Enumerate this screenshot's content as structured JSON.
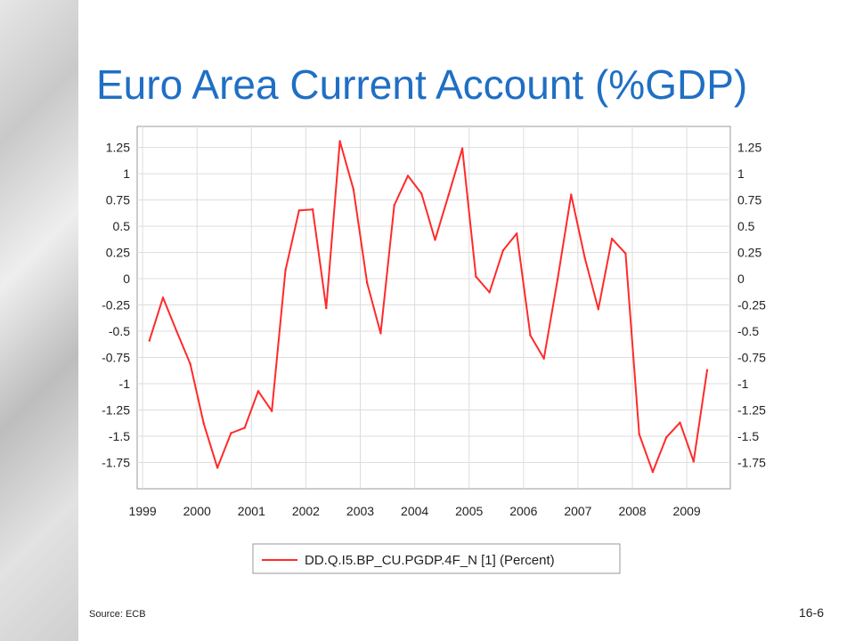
{
  "slide": {
    "title": "Euro Area Current Account (%GDP)",
    "source": "Source: ECB",
    "page_number": "16-6"
  },
  "chart_data": {
    "type": "line",
    "title": "",
    "xlabel": "",
    "ylabel": "",
    "x_ticks": [
      "1999",
      "2000",
      "2001",
      "2002",
      "2003",
      "2004",
      "2005",
      "2006",
      "2007",
      "2008",
      "2009"
    ],
    "y_ticks": [
      "1.25",
      "1",
      "0.75",
      "0.5",
      "0.25",
      "0",
      "-0.25",
      "-0.5",
      "-0.75",
      "-1",
      "-1.25",
      "-1.5",
      "-1.75"
    ],
    "xlim": [
      1998.9,
      2009.8
    ],
    "ylim": [
      -2.0,
      1.45
    ],
    "grid": true,
    "legend_position": "bottom",
    "colors": {
      "series": "#ff2a2a",
      "grid": "#dddddd",
      "frame": "#999999"
    },
    "series": [
      {
        "name": "DD.Q.I5.BP_CU.PGDP.4F_N [1] (Percent)",
        "x": [
          1999.125,
          1999.375,
          1999.625,
          1999.875,
          2000.125,
          2000.375,
          2000.625,
          2000.875,
          2001.125,
          2001.375,
          2001.625,
          2001.875,
          2002.125,
          2002.375,
          2002.625,
          2002.875,
          2003.125,
          2003.375,
          2003.625,
          2003.875,
          2004.125,
          2004.375,
          2004.625,
          2004.875,
          2005.125,
          2005.375,
          2005.625,
          2005.875,
          2006.125,
          2006.375,
          2006.625,
          2006.875,
          2007.125,
          2007.375,
          2007.625,
          2007.875,
          2008.125,
          2008.375,
          2008.625,
          2008.875,
          2009.125,
          2009.375
        ],
        "y": [
          -0.59,
          -0.18,
          -0.5,
          -0.81,
          -1.38,
          -1.8,
          -1.47,
          -1.42,
          -1.07,
          -1.26,
          0.08,
          0.65,
          0.66,
          -0.28,
          1.31,
          0.85,
          -0.04,
          -0.52,
          0.7,
          0.98,
          0.81,
          0.37,
          0.8,
          1.24,
          0.02,
          -0.13,
          0.27,
          0.43,
          -0.54,
          -0.76,
          -0.01,
          0.8,
          0.2,
          -0.29,
          0.38,
          0.24,
          -1.48,
          -1.84,
          -1.51,
          -1.37,
          -1.74,
          -0.87
        ]
      }
    ]
  }
}
